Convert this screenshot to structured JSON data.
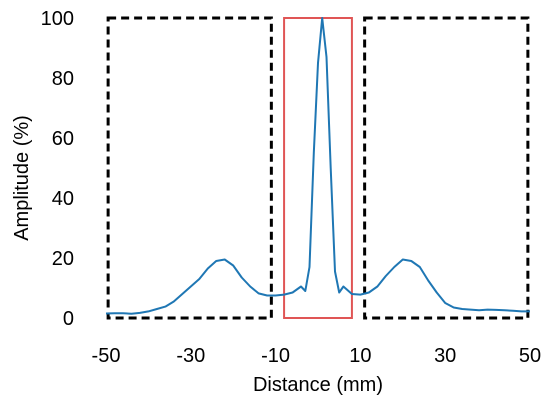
{
  "chart_data": {
    "type": "line",
    "title": "",
    "xlabel": "Distance (mm)",
    "ylabel": "Amplitude (%)",
    "xlim": [
      -50,
      50
    ],
    "ylim": [
      0,
      100
    ],
    "x_ticks": [
      "-50",
      "-30",
      "-10",
      "10",
      "30",
      "50"
    ],
    "x_tick_values": [
      -50,
      -30,
      -10,
      10,
      30,
      50
    ],
    "y_ticks": [
      "0",
      "20",
      "40",
      "60",
      "80",
      "100"
    ],
    "y_tick_values": [
      0,
      20,
      40,
      60,
      80,
      100
    ],
    "grid": false,
    "legend": "none",
    "series": [
      {
        "color": "#1f77b4",
        "x": [
          -50,
          -48,
          -46,
          -44,
          -42,
          -40,
          -38,
          -36,
          -34,
          -32,
          -30,
          -28,
          -26,
          -24,
          -22,
          -20,
          -18,
          -16,
          -14,
          -12,
          -10,
          -8,
          -6,
          -4,
          -3,
          -2,
          -1,
          0,
          1,
          2,
          3,
          4,
          5,
          6,
          8,
          10,
          12,
          14,
          16,
          18,
          20,
          22,
          24,
          26,
          28,
          30,
          32,
          34,
          36,
          38,
          40,
          42,
          44,
          46,
          48,
          50
        ],
        "y": [
          1.5,
          1.6,
          1.6,
          1.4,
          1.7,
          2.2,
          3.0,
          3.8,
          5.5,
          8.0,
          10.5,
          13.0,
          16.5,
          19.0,
          19.5,
          17.5,
          13.5,
          10.5,
          8.2,
          7.5,
          7.5,
          7.8,
          8.5,
          10.5,
          9.0,
          17.0,
          55.0,
          85.0,
          100.0,
          87.0,
          50.0,
          15.5,
          8.5,
          10.5,
          8.0,
          7.8,
          8.5,
          10.5,
          14.0,
          17.0,
          19.5,
          19.0,
          17.0,
          12.5,
          8.5,
          5.0,
          3.5,
          3.0,
          2.8,
          2.6,
          2.8,
          2.7,
          2.6,
          2.4,
          2.2,
          2.2
        ]
      }
    ],
    "annotations": [
      {
        "kind": "rectangle",
        "style": "dashed",
        "color": "#000000",
        "x": [
          -49.5,
          -11
        ],
        "y": [
          0,
          100
        ]
      },
      {
        "kind": "rectangle",
        "style": "solid",
        "color": "#e05555",
        "x": [
          -8,
          8
        ],
        "y": [
          0,
          100
        ]
      },
      {
        "kind": "rectangle",
        "style": "dashed",
        "color": "#000000",
        "x": [
          11,
          49.5
        ],
        "y": [
          0,
          100
        ]
      }
    ]
  }
}
